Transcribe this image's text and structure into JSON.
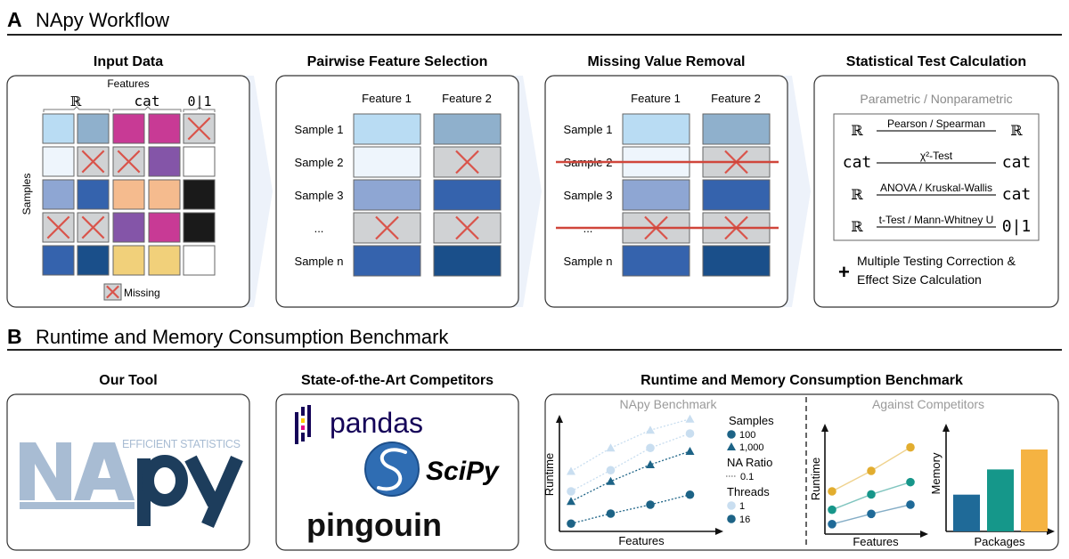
{
  "section_a": {
    "letter": "A",
    "title": "NApy Workflow"
  },
  "input_data": {
    "title": "Input Data",
    "features_label": "Features",
    "samples_label": "Samples",
    "type_labels": [
      "ℝ",
      "cat",
      "0|1"
    ],
    "missing_label": "Missing",
    "cells": [
      [
        "#b9dcf3",
        "#8fb0cc",
        "#c83a95",
        "#c83a95",
        "missing"
      ],
      [
        "#eef5fc",
        "missing",
        "missing",
        "#8455a8",
        "#ffffff"
      ],
      [
        "#8ea6d3",
        "#3563ad",
        "#f5bb8e",
        "#f5bb8e",
        "#1a1a1a"
      ],
      [
        "missing",
        "missing",
        "#8455a8",
        "#c83a95",
        "#1a1a1a"
      ],
      [
        "#3563ad",
        "#1a4f8a",
        "#f1d07a",
        "#f1d07a",
        "#ffffff"
      ]
    ]
  },
  "pairwise": {
    "title": "Pairwise Feature Selection",
    "columns": [
      "Feature 1",
      "Feature 2"
    ],
    "rows": [
      "Sample 1",
      "Sample 2",
      "Sample 3",
      "...",
      "Sample n"
    ],
    "cells": [
      [
        "#b9dcf3",
        "#8fb0cc"
      ],
      [
        "#eef5fc",
        "missing"
      ],
      [
        "#8ea6d3",
        "#3563ad"
      ],
      [
        "missing",
        "missing"
      ],
      [
        "#3563ad",
        "#1a4f8a"
      ]
    ]
  },
  "missing_removal": {
    "title": "Missing Value Removal",
    "columns": [
      "Feature 1",
      "Feature 2"
    ],
    "rows": [
      "Sample 1",
      "Sample 2",
      "Sample 3",
      "...",
      "Sample n"
    ],
    "removed_rows": [
      1,
      3
    ],
    "cells": [
      [
        "#b9dcf3",
        "#8fb0cc"
      ],
      [
        "#eef5fc",
        "missing"
      ],
      [
        "#8ea6d3",
        "#3563ad"
      ],
      [
        "missing",
        "missing"
      ],
      [
        "#3563ad",
        "#1a4f8a"
      ]
    ]
  },
  "stat_test": {
    "title": "Statistical Test Calculation",
    "subtitle": "Parametric / Nonparametric",
    "tests": [
      {
        "left": "ℝ",
        "label": "Pearson / Spearman",
        "right": "ℝ"
      },
      {
        "left": "cat",
        "label": "χ²-Test",
        "right": "cat"
      },
      {
        "left": "ℝ",
        "label": "ANOVA / Kruskal-Wallis",
        "right": "cat"
      },
      {
        "left": "ℝ",
        "label": "t-Test / Mann-Whitney U",
        "right": "0|1"
      }
    ],
    "plus": "+",
    "extra_lines": [
      "Multiple Testing Correction &",
      "Effect Size Calculation"
    ]
  },
  "section_b": {
    "letter": "B",
    "title": "Runtime and Memory Consumption Benchmark"
  },
  "our_tool": {
    "title": "Our Tool",
    "logo": {
      "na": "NA",
      "py": "py",
      "tagline": "EFFICIENT STATISTICS"
    }
  },
  "competitors": {
    "title": "State-of-the-Art Competitors",
    "logos": [
      "pandas",
      "SciPy",
      "pingouin"
    ]
  },
  "benchmark": {
    "title": "Runtime and Memory Consumption Benchmark",
    "napy_title": "NApy Benchmark",
    "competitors_title": "Against Competitors",
    "legend": {
      "samples_title": "Samples",
      "samples": [
        "100",
        "1,000"
      ],
      "na_title": "NA Ratio",
      "na_value": "0.1",
      "threads_title": "Threads",
      "threads": [
        "1",
        "16"
      ]
    }
  },
  "chart_data": [
    {
      "type": "line",
      "title": "NApy Benchmark",
      "xlabel": "Features",
      "ylabel": "Runtime",
      "grid": false,
      "legend_placement": "right",
      "x": [
        1,
        2,
        3,
        4
      ],
      "series": [
        {
          "samples": "1,000",
          "threads": "1",
          "marker": "triangle",
          "color": "#c9def0",
          "values": [
            5.4,
            7.5,
            9.1,
            10.1
          ]
        },
        {
          "samples": "100",
          "threads": "1",
          "marker": "circle",
          "color": "#c9def0",
          "values": [
            3.6,
            5.5,
            7.5,
            8.8
          ]
        },
        {
          "samples": "1,000",
          "threads": "16",
          "marker": "triangle",
          "color": "#1d6386",
          "values": [
            2.7,
            4.5,
            6.0,
            7.2
          ]
        },
        {
          "samples": "100",
          "threads": "16",
          "marker": "circle",
          "color": "#1d6386",
          "values": [
            0.7,
            1.6,
            2.4,
            3.3
          ]
        }
      ]
    },
    {
      "type": "line",
      "title": "Against Competitors",
      "xlabel": "Features",
      "ylabel": "Runtime",
      "grid": false,
      "x": [
        1,
        2,
        3
      ],
      "series": [
        {
          "color": "#e2ad2f",
          "values": [
            4.0,
            6.0,
            8.3
          ]
        },
        {
          "color": "#17968a",
          "values": [
            2.2,
            3.7,
            4.9
          ]
        },
        {
          "color": "#1f6a98",
          "values": [
            0.8,
            1.8,
            2.7
          ]
        }
      ]
    },
    {
      "type": "bar",
      "xlabel": "Packages",
      "ylabel": "Memory",
      "grid": false,
      "colors": [
        "#1f6a98",
        "#15978a",
        "#f5b342"
      ],
      "values": [
        3.5,
        5.9,
        7.8
      ]
    }
  ]
}
